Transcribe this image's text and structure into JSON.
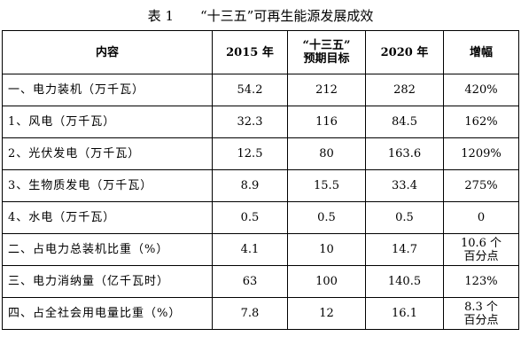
{
  "caption": {
    "number": "表 1",
    "title": "“十三五”可再生能源发展成效"
  },
  "table": {
    "headers": {
      "item": "内容",
      "y2015": "2015 年",
      "target_line1": "“十三五”",
      "target_line2": "预期目标",
      "y2020": "2020 年",
      "growth": "增幅"
    },
    "rows": [
      {
        "item": "一、电力装机（万千瓦）",
        "y2015": "54.2",
        "target": "212",
        "y2020": "282",
        "growth_line1": "420%",
        "growth_line2": ""
      },
      {
        "item": "1、风电（万千瓦）",
        "y2015": "32.3",
        "target": "116",
        "y2020": "84.5",
        "growth_line1": "162%",
        "growth_line2": ""
      },
      {
        "item": "2、光伏发电（万千瓦）",
        "y2015": "12.5",
        "target": "80",
        "y2020": "163.6",
        "growth_line1": "1209%",
        "growth_line2": ""
      },
      {
        "item": "3、生物质发电（万千瓦）",
        "y2015": "8.9",
        "target": "15.5",
        "y2020": "33.4",
        "growth_line1": "275%",
        "growth_line2": ""
      },
      {
        "item": "4、水电（万千瓦）",
        "y2015": "0.5",
        "target": "0.5",
        "y2020": "0.5",
        "growth_line1": "0",
        "growth_line2": ""
      },
      {
        "item": "二、占电力总装机比重（%）",
        "y2015": "4.1",
        "target": "10",
        "y2020": "14.7",
        "growth_line1": "10.6 个",
        "growth_line2": "百分点"
      },
      {
        "item": "三、电力消纳量（亿千瓦时）",
        "y2015": "63",
        "target": "100",
        "y2020": "140.5",
        "growth_line1": "123%",
        "growth_line2": ""
      },
      {
        "item": "四、占全社会用电量比重（%）",
        "y2015": "7.8",
        "target": "12",
        "y2020": "16.1",
        "growth_line1": "8.3 个",
        "growth_line2": "百分点"
      }
    ]
  }
}
